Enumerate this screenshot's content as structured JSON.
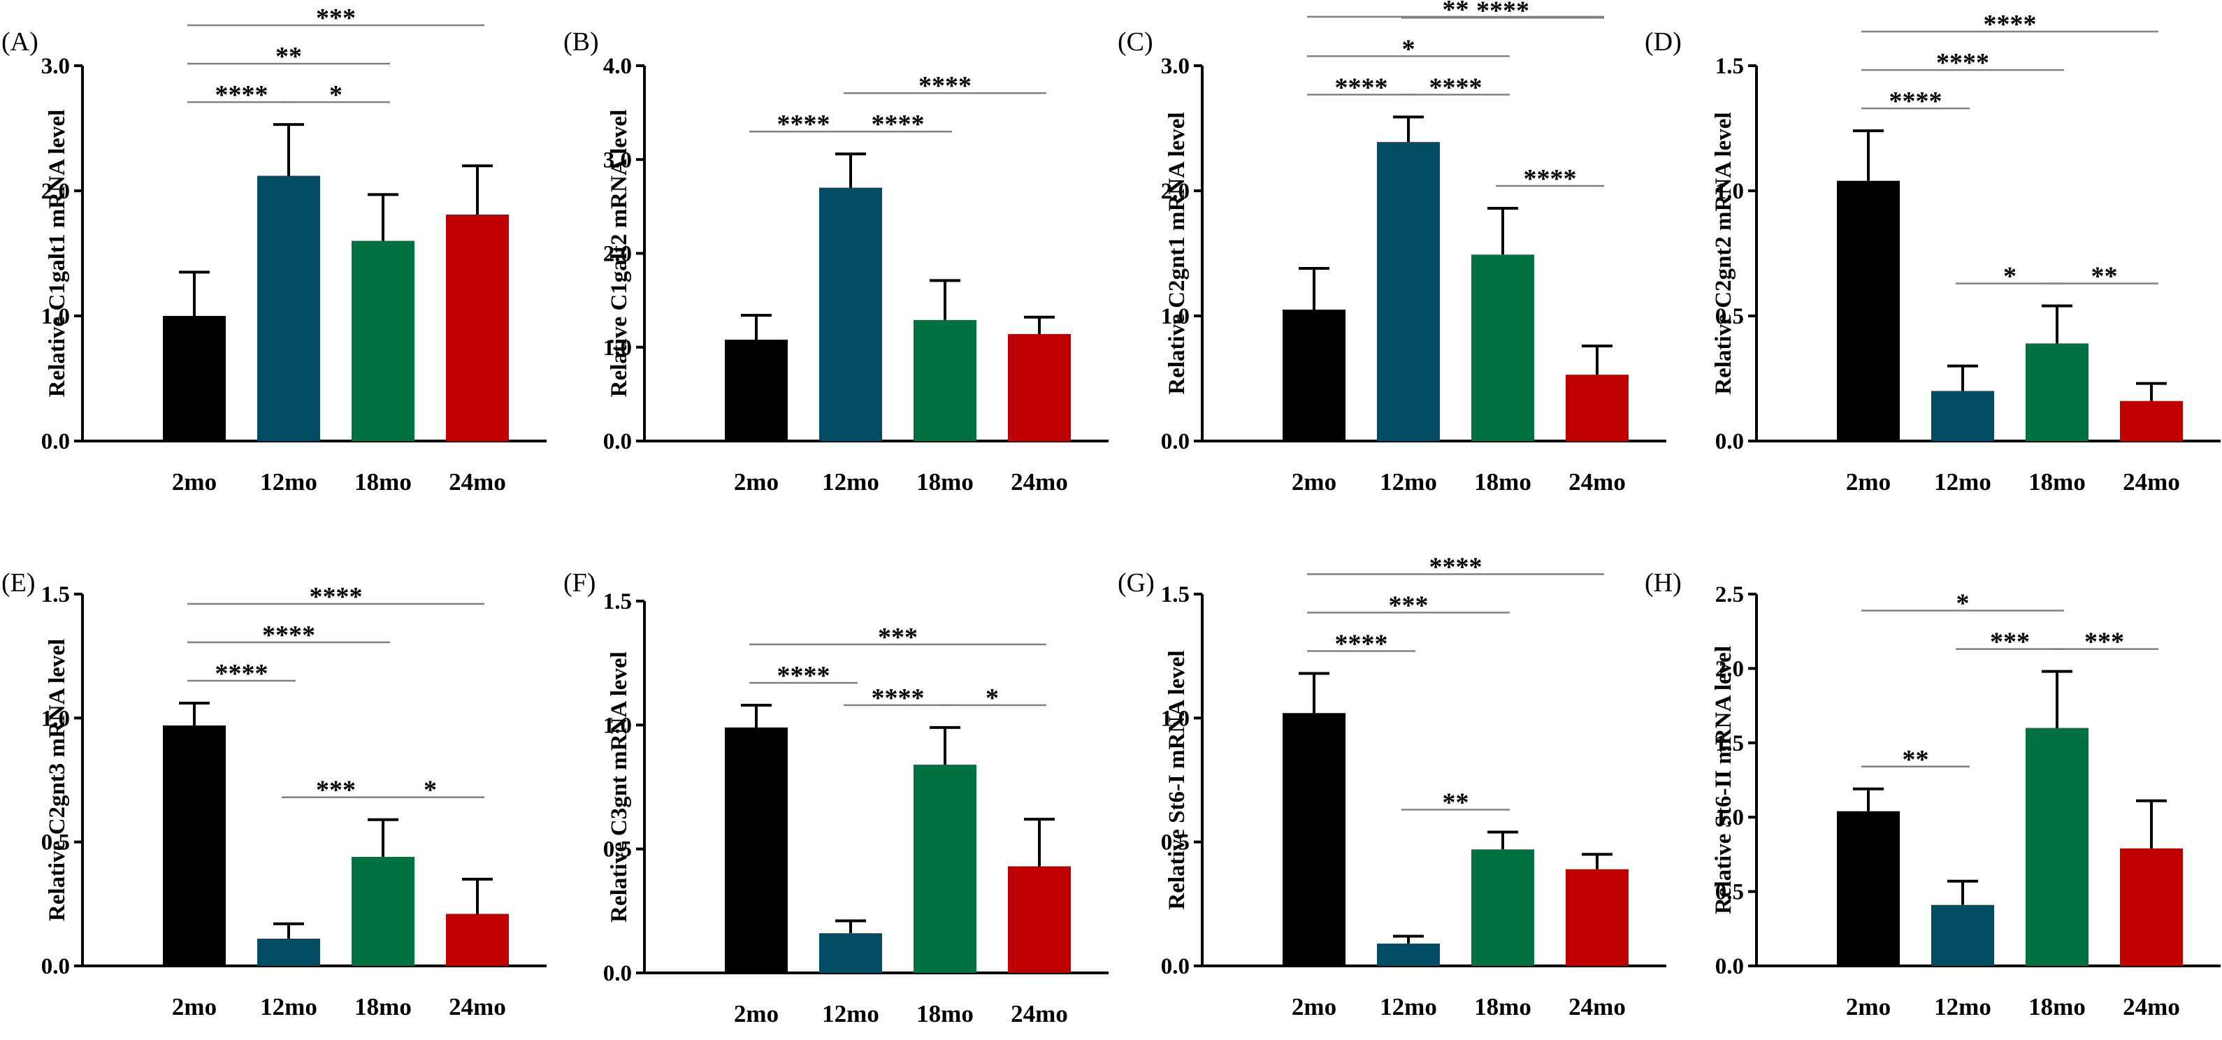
{
  "colors": {
    "2mo": "#000000",
    "12mo": "#014b63",
    "18mo": "#007141",
    "24mo": "#c00000",
    "axis": "#000000",
    "sig_line": "#808080"
  },
  "chart_data": [
    {
      "type": "bar",
      "panel": "(A)",
      "ylabel": "Relative C1galt1 mRNA level",
      "categories": [
        "2mo",
        "12mo",
        "18mo",
        "24mo"
      ],
      "values": [
        1.0,
        2.12,
        1.6,
        1.81
      ],
      "errors": [
        0.35,
        0.41,
        0.37,
        0.39
      ],
      "ylim": [
        0,
        3
      ],
      "yticks": [
        "0.0",
        "1.0",
        "2.0",
        "3.0"
      ],
      "significance": [
        {
          "from": 0,
          "to": 3,
          "label": "***"
        },
        {
          "from": 0,
          "to": 2,
          "label": "**"
        },
        {
          "from": 0,
          "to": 1,
          "label": "****"
        },
        {
          "from": 1,
          "to": 2,
          "label": "*"
        }
      ]
    },
    {
      "type": "bar",
      "panel": "(B)",
      "ylabel": "Relative C1galt2 mRNA level",
      "categories": [
        "2mo",
        "12mo",
        "18mo",
        "24mo"
      ],
      "values": [
        1.08,
        2.7,
        1.29,
        1.14
      ],
      "errors": [
        0.26,
        0.36,
        0.42,
        0.18
      ],
      "ylim": [
        0,
        4
      ],
      "yticks": [
        "0.0",
        "1.0",
        "2.0",
        "3.0",
        "4.0"
      ],
      "significance": [
        {
          "from": 0,
          "to": 1,
          "label": "****"
        },
        {
          "from": 1,
          "to": 3,
          "label": "****"
        },
        {
          "from": 1,
          "to": 2,
          "label": "****"
        }
      ]
    },
    {
      "type": "bar",
      "panel": "(C)",
      "ylabel": "Relative C2gnt1 mRNA level",
      "categories": [
        "2mo",
        "12mo",
        "18mo",
        "24mo"
      ],
      "values": [
        1.05,
        2.39,
        1.49,
        0.53
      ],
      "errors": [
        0.33,
        0.2,
        0.37,
        0.23
      ],
      "ylim": [
        0,
        3
      ],
      "yticks": [
        "0.0",
        "1.0",
        "2.0",
        "3.0"
      ],
      "significance": [
        {
          "from": 0,
          "to": 3,
          "label": "**"
        },
        {
          "from": 0,
          "to": 2,
          "label": "*"
        },
        {
          "from": 1,
          "to": 3,
          "label": "****"
        },
        {
          "from": 0,
          "to": 1,
          "label": "****"
        },
        {
          "from": 1,
          "to": 2,
          "label": "****"
        },
        {
          "from": 2,
          "to": 3,
          "label": "****"
        }
      ]
    },
    {
      "type": "bar",
      "panel": "(D)",
      "ylabel": "Relative C2gnt2 mRNA level",
      "categories": [
        "2mo",
        "12mo",
        "18mo",
        "24mo"
      ],
      "values": [
        1.04,
        0.2,
        0.39,
        0.16
      ],
      "errors": [
        0.2,
        0.1,
        0.15,
        0.07
      ],
      "ylim": [
        0,
        1.5
      ],
      "yticks": [
        "0.0",
        "0.5",
        "1.0",
        "1.5"
      ],
      "significance": [
        {
          "from": 0,
          "to": 3,
          "label": "****"
        },
        {
          "from": 0,
          "to": 2,
          "label": "****"
        },
        {
          "from": 0,
          "to": 1,
          "label": "****"
        },
        {
          "from": 1,
          "to": 2,
          "label": "*"
        },
        {
          "from": 2,
          "to": 3,
          "label": "**"
        }
      ]
    },
    {
      "type": "bar",
      "panel": "(E)",
      "ylabel": "Relative C2gnt3 mRNA level",
      "categories": [
        "2mo",
        "12mo",
        "18mo",
        "24mo"
      ],
      "values": [
        0.97,
        0.11,
        0.44,
        0.21
      ],
      "errors": [
        0.09,
        0.06,
        0.15,
        0.14
      ],
      "ylim": [
        0,
        1.5
      ],
      "yticks": [
        "0.0",
        "0.5",
        "1.0",
        "1.5"
      ],
      "significance": [
        {
          "from": 0,
          "to": 3,
          "label": "****"
        },
        {
          "from": 0,
          "to": 2,
          "label": "****"
        },
        {
          "from": 0,
          "to": 1,
          "label": "****"
        },
        {
          "from": 1,
          "to": 2,
          "label": "***"
        },
        {
          "from": 2,
          "to": 3,
          "label": "*"
        }
      ]
    },
    {
      "type": "bar",
      "panel": "(F)",
      "ylabel": "Relative C3gnt mRNA level",
      "categories": [
        "2mo",
        "12mo",
        "18mo",
        "24mo"
      ],
      "values": [
        0.99,
        0.16,
        0.84,
        0.43
      ],
      "errors": [
        0.09,
        0.05,
        0.15,
        0.19
      ],
      "ylim": [
        0,
        1.5
      ],
      "yticks": [
        "0.0",
        "0.5",
        "1.0",
        "1.5"
      ],
      "significance": [
        {
          "from": 0,
          "to": 3,
          "label": "***"
        },
        {
          "from": 0,
          "to": 1,
          "label": "****"
        },
        {
          "from": 1,
          "to": 2,
          "label": "****"
        },
        {
          "from": 2,
          "to": 3,
          "label": "*"
        }
      ]
    },
    {
      "type": "bar",
      "panel": "(G)",
      "ylabel": "Relative St6-I mRNA level",
      "categories": [
        "2mo",
        "12mo",
        "18mo",
        "24mo"
      ],
      "values": [
        1.02,
        0.09,
        0.47,
        0.39
      ],
      "errors": [
        0.16,
        0.03,
        0.07,
        0.06
      ],
      "ylim": [
        0,
        1.5
      ],
      "yticks": [
        "0.0",
        "0.5",
        "1.0",
        "1.5"
      ],
      "significance": [
        {
          "from": 0,
          "to": 3,
          "label": "****"
        },
        {
          "from": 0,
          "to": 2,
          "label": "***"
        },
        {
          "from": 0,
          "to": 1,
          "label": "****"
        },
        {
          "from": 1,
          "to": 2,
          "label": "**"
        }
      ]
    },
    {
      "type": "bar",
      "panel": "(H)",
      "ylabel": "Relative St6-II mRNA level",
      "categories": [
        "2mo",
        "12mo",
        "18mo",
        "24mo"
      ],
      "values": [
        1.04,
        0.41,
        1.6,
        0.79
      ],
      "errors": [
        0.15,
        0.16,
        0.38,
        0.32
      ],
      "ylim": [
        0,
        2.5
      ],
      "yticks": [
        "0.0",
        "0.5",
        "1.0",
        "1.5",
        "2.0",
        "2.5"
      ],
      "significance": [
        {
          "from": 0,
          "to": 2,
          "label": "*"
        },
        {
          "from": 1,
          "to": 2,
          "label": "***"
        },
        {
          "from": 2,
          "to": 3,
          "label": "***"
        },
        {
          "from": 0,
          "to": 1,
          "label": "**"
        }
      ]
    }
  ]
}
